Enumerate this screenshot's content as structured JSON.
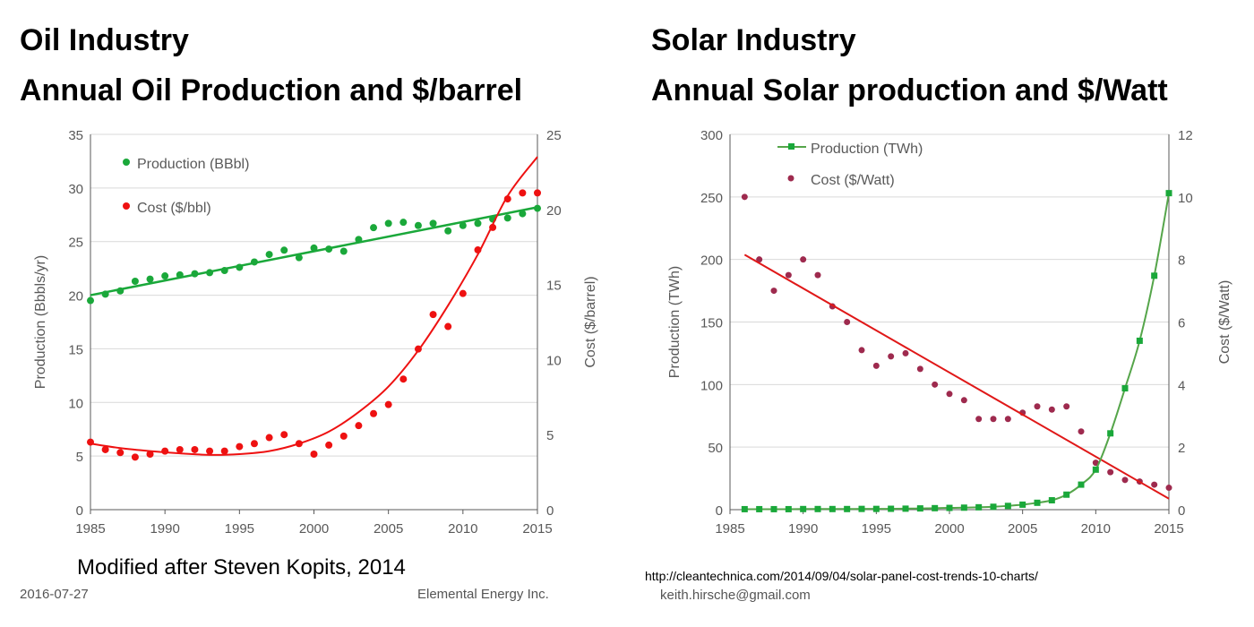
{
  "colors": {
    "production": "#1aa83a",
    "cost_oil": "#ee1111",
    "cost_solar_points": "#9e2a4e",
    "trend_solar": "#e01818",
    "solar_line": "#55a54a",
    "axis": "#595959",
    "grid": "#d9d9d9"
  },
  "oil": {
    "title1": "Oil Industry",
    "title2": "Annual Oil Production and $/barrel",
    "credit": "Modified after Steven Kopits, 2014"
  },
  "solar": {
    "title1": "Solar Industry",
    "title2": "Annual Solar production and $/Watt",
    "source_url": "http://cleantechnica.com/2014/09/04/solar-panel-cost-trends-10-charts/"
  },
  "footer": {
    "date": "2016-07-27",
    "company": "Elemental Energy Inc.",
    "email": "keith.hirsche@gmail.com"
  },
  "chart_data": [
    {
      "type": "scatter",
      "title": "Annual Oil Production and $/barrel",
      "xlabel": "",
      "ylabel": "Production (Bbbls/yr)",
      "y2label": "Cost ($/barrel)",
      "xlim": [
        1985,
        2015
      ],
      "ylim": [
        0,
        35
      ],
      "y2lim": [
        0,
        25
      ],
      "xticks": [
        "1985",
        "1990",
        "1995",
        "2000",
        "2005",
        "2010",
        "2015"
      ],
      "yticks": [
        "0",
        "5",
        "10",
        "15",
        "20",
        "25",
        "30",
        "35"
      ],
      "y2ticks": [
        "0",
        "5",
        "10",
        "15",
        "20",
        "25"
      ],
      "legend": [
        "Production (BBbl)",
        "Cost ($/bbl)"
      ],
      "legend_position": "top-left",
      "series": [
        {
          "name": "Production (BBbl)",
          "axis": "left",
          "x": [
            1985,
            1986,
            1987,
            1988,
            1989,
            1990,
            1991,
            1992,
            1993,
            1994,
            1995,
            1996,
            1997,
            1998,
            1999,
            2000,
            2001,
            2002,
            2003,
            2004,
            2005,
            2006,
            2007,
            2008,
            2009,
            2010,
            2011,
            2012,
            2013,
            2014,
            2015
          ],
          "y": [
            19.5,
            20.1,
            20.4,
            21.3,
            21.5,
            21.8,
            21.9,
            22.0,
            22.1,
            22.3,
            22.6,
            23.1,
            23.8,
            24.2,
            23.5,
            24.4,
            24.3,
            24.1,
            25.2,
            26.3,
            26.7,
            26.8,
            26.5,
            26.7,
            26.0,
            26.5,
            26.7,
            27.1,
            27.2,
            27.6,
            28.1
          ],
          "trend": "linear",
          "trend_start": 20.0,
          "trend_end": 28.2
        },
        {
          "name": "Cost ($/bbl)",
          "axis": "right",
          "x": [
            1985,
            1986,
            1987,
            1988,
            1989,
            1990,
            1991,
            1992,
            1993,
            1994,
            1995,
            1996,
            1997,
            1998,
            1999,
            2000,
            2001,
            2002,
            2003,
            2004,
            2005,
            2006,
            2007,
            2008,
            2009,
            2010,
            2011,
            2012,
            2013,
            2014,
            2015
          ],
          "y": [
            4.5,
            4.0,
            3.8,
            3.5,
            3.7,
            3.9,
            4.0,
            4.0,
            3.9,
            3.9,
            4.2,
            4.4,
            4.8,
            5.0,
            4.4,
            3.7,
            4.3,
            4.9,
            5.6,
            6.4,
            7.0,
            8.7,
            10.7,
            13.0,
            12.2,
            14.4,
            17.3,
            18.8,
            20.7,
            21.1,
            21.1
          ],
          "trend": "polynomial",
          "trend_x": [
            1985,
            1987,
            1989,
            1991,
            1993,
            1995,
            1997,
            1999,
            2001,
            2003,
            2005,
            2007,
            2009,
            2011,
            2013,
            2015
          ],
          "trend_y": [
            4.4,
            4.1,
            3.9,
            3.75,
            3.65,
            3.7,
            3.9,
            4.4,
            5.2,
            6.5,
            8.2,
            10.6,
            13.6,
            17.0,
            20.9,
            23.5
          ]
        }
      ]
    },
    {
      "type": "scatter",
      "title": "Annual Solar production and $/Watt",
      "xlabel": "",
      "ylabel": "Production (TWh)",
      "y2label": "Cost ($/Watt)",
      "xlim": [
        1985,
        2015
      ],
      "ylim": [
        0,
        300
      ],
      "y2lim": [
        0,
        12
      ],
      "xticks": [
        "1985",
        "1990",
        "1995",
        "2000",
        "2005",
        "2010",
        "2015"
      ],
      "yticks": [
        "0",
        "50",
        "100",
        "150",
        "200",
        "250",
        "300"
      ],
      "y2ticks": [
        "0",
        "2",
        "4",
        "6",
        "8",
        "10",
        "12"
      ],
      "legend": [
        "Production (TWh)",
        "Cost ($/Watt)"
      ],
      "legend_position": "top-left",
      "series": [
        {
          "name": "Production (TWh)",
          "axis": "left",
          "x": [
            1986,
            1987,
            1988,
            1989,
            1990,
            1991,
            1992,
            1993,
            1994,
            1995,
            1996,
            1997,
            1998,
            1999,
            2000,
            2001,
            2002,
            2003,
            2004,
            2005,
            2006,
            2007,
            2008,
            2009,
            2010,
            2011,
            2012,
            2013,
            2014,
            2015
          ],
          "y": [
            0.4,
            0.4,
            0.4,
            0.4,
            0.5,
            0.5,
            0.5,
            0.5,
            0.6,
            0.6,
            0.7,
            0.8,
            1.0,
            1.2,
            1.4,
            1.6,
            1.9,
            2.3,
            3.0,
            4.0,
            5.5,
            7.5,
            12,
            20,
            32,
            61,
            97,
            135,
            187,
            253
          ],
          "trend": "curve"
        },
        {
          "name": "Cost ($/Watt)",
          "axis": "right",
          "x": [
            1986,
            1987,
            1988,
            1989,
            1990,
            1991,
            1992,
            1993,
            1994,
            1995,
            1996,
            1997,
            1998,
            1999,
            2000,
            2001,
            2002,
            2003,
            2004,
            2005,
            2006,
            2007,
            2008,
            2009,
            2010,
            2011,
            2012,
            2013,
            2014,
            2015
          ],
          "y": [
            10.0,
            8.0,
            7.0,
            7.5,
            8.0,
            7.5,
            6.5,
            6.0,
            5.1,
            4.6,
            4.9,
            5.0,
            4.5,
            4.0,
            3.7,
            3.5,
            2.9,
            2.9,
            2.9,
            3.1,
            3.3,
            3.2,
            3.3,
            2.5,
            1.5,
            1.2,
            0.95,
            0.9,
            0.8,
            0.7
          ],
          "trend": "linear",
          "trend_start": 8.15,
          "trend_end": 0.35
        }
      ]
    }
  ]
}
